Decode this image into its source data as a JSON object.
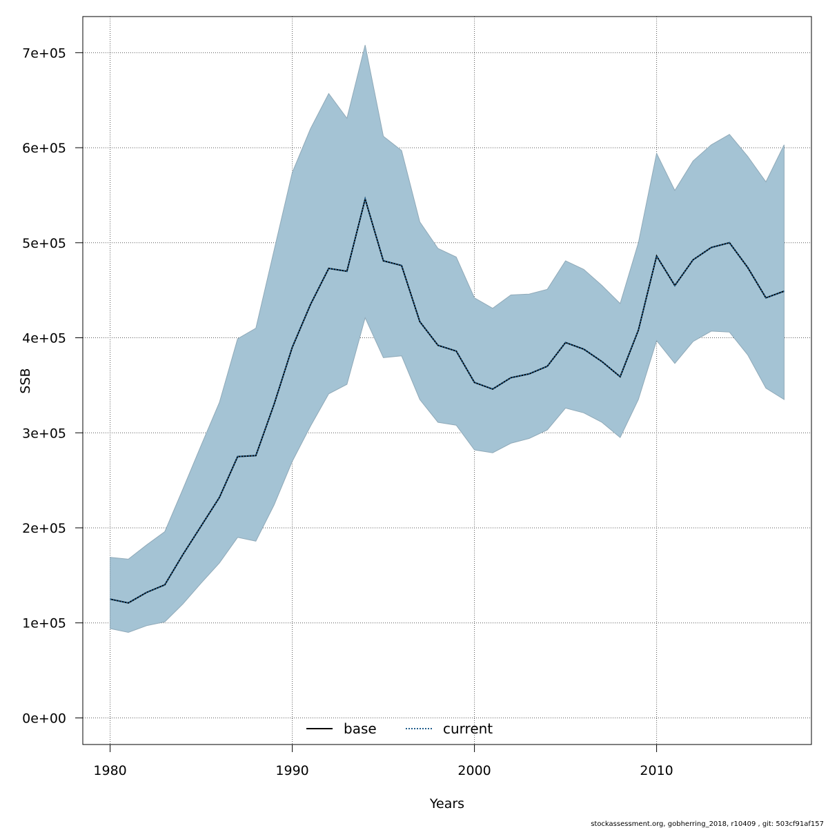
{
  "chart_data": {
    "type": "line",
    "title": "",
    "xlabel": "Years",
    "ylabel": "SSB",
    "xlim": [
      1978.5,
      2018.5
    ],
    "ylim": [
      -28000,
      738000
    ],
    "x_ticks": [
      1980,
      1990,
      2000,
      2010
    ],
    "x_tick_labels": [
      "1980",
      "1990",
      "2000",
      "2010"
    ],
    "y_ticks": [
      0,
      100000,
      200000,
      300000,
      400000,
      500000,
      600000,
      700000
    ],
    "y_tick_labels": [
      "0e+00",
      "1e+05",
      "2e+05",
      "3e+05",
      "4e+05",
      "5e+05",
      "6e+05",
      "7e+05"
    ],
    "grid": true,
    "legend_position": "bottom",
    "x": [
      1980,
      1981,
      1982,
      1983,
      1984,
      1985,
      1986,
      1987,
      1988,
      1989,
      1990,
      1991,
      1992,
      1993,
      1994,
      1995,
      1996,
      1997,
      1998,
      1999,
      2000,
      2001,
      2002,
      2003,
      2004,
      2005,
      2006,
      2007,
      2008,
      2009,
      2010,
      2011,
      2012,
      2013,
      2014,
      2015,
      2016,
      2017
    ],
    "series": [
      {
        "name": "base",
        "color": "#000000",
        "style": "solid",
        "values": [
          125000,
          121000,
          132000,
          140000,
          172000,
          202000,
          232000,
          275000,
          276000,
          330000,
          390000,
          435000,
          473000,
          470000,
          546000,
          481000,
          476000,
          417000,
          392000,
          386000,
          353000,
          346000,
          358000,
          362000,
          370000,
          395000,
          388000,
          375000,
          359000,
          408000,
          486000,
          455000,
          482000,
          495000,
          500000,
          474000,
          442000,
          449000
        ]
      },
      {
        "name": "current",
        "color": "#1f5c8b",
        "style": "dotted",
        "values": [
          125000,
          121000,
          132000,
          140000,
          172000,
          202000,
          232000,
          275000,
          276000,
          330000,
          390000,
          435000,
          473000,
          470000,
          546000,
          481000,
          476000,
          417000,
          392000,
          386000,
          353000,
          346000,
          358000,
          362000,
          370000,
          395000,
          388000,
          375000,
          359000,
          408000,
          486000,
          455000,
          482000,
          495000,
          500000,
          474000,
          442000,
          449000
        ]
      }
    ],
    "band": {
      "color": "#a4c3d4",
      "lower": [
        94000,
        90000,
        97000,
        101000,
        120000,
        142000,
        163000,
        190000,
        186000,
        224000,
        270000,
        307000,
        341000,
        351000,
        421000,
        379000,
        381000,
        335000,
        311000,
        308000,
        282000,
        279000,
        289000,
        294000,
        303000,
        326000,
        321000,
        311000,
        295000,
        335000,
        397000,
        373000,
        396000,
        407000,
        406000,
        382000,
        347000,
        335000
      ],
      "upper": [
        169000,
        167000,
        182000,
        196000,
        241000,
        287000,
        332000,
        399000,
        410000,
        492000,
        574000,
        620000,
        657000,
        631000,
        708000,
        612000,
        597000,
        522000,
        494000,
        485000,
        442000,
        431000,
        445000,
        446000,
        451000,
        481000,
        472000,
        455000,
        436000,
        500000,
        594000,
        555000,
        586000,
        603000,
        614000,
        591000,
        564000,
        603000
      ]
    }
  },
  "footer": {
    "text": "stockassessment.org, gobherring_2018, r10409 , git: 503cf91af157"
  }
}
